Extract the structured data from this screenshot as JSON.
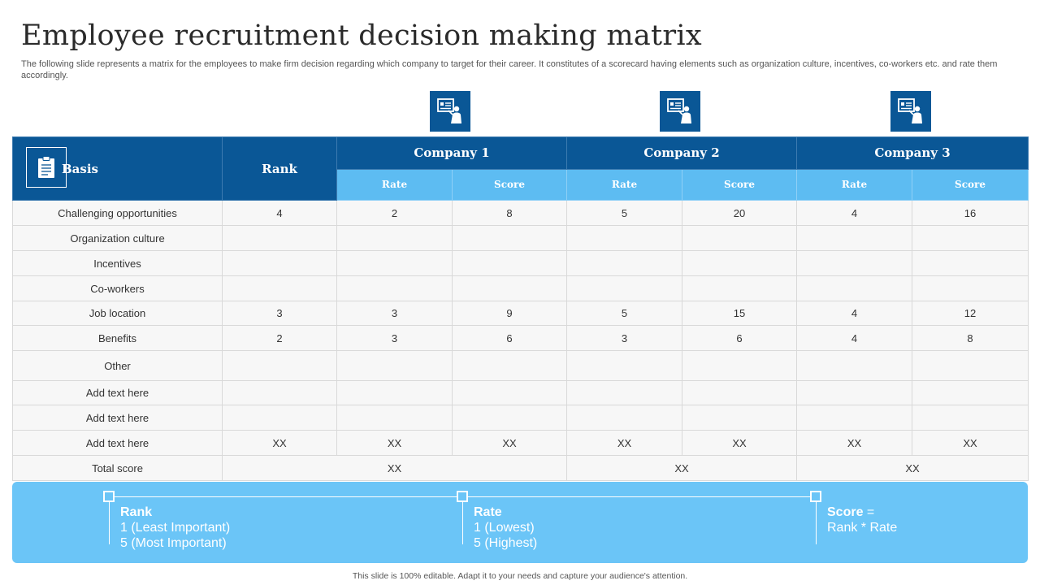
{
  "title": "Employee recruitment decision making matrix",
  "subtitle": "The following slide represents a matrix for the employees to make firm decision regarding which company to target for their career. It constitutes of a scorecard having elements such as organization culture, incentives, co-workers etc. and rate them accordingly.",
  "table": {
    "basis_header": "Basis",
    "rank_header": "Rank",
    "companies": [
      "Company 1",
      "Company 2",
      "Company 3"
    ],
    "sub_headers": {
      "rate": "Rate",
      "score": "Score"
    },
    "rows": [
      {
        "basis": "Challenging opportunities",
        "cells": [
          "4",
          "2",
          "8",
          "5",
          "20",
          "4",
          "16"
        ]
      },
      {
        "basis": "Organization culture",
        "cells": [
          "",
          "",
          "",
          "",
          "",
          "",
          ""
        ]
      },
      {
        "basis": "Incentives",
        "cells": [
          "",
          "",
          "",
          "",
          "",
          "",
          ""
        ]
      },
      {
        "basis": "Co-workers",
        "cells": [
          "",
          "",
          "",
          "",
          "",
          "",
          ""
        ]
      },
      {
        "basis": "Job location",
        "cells": [
          "3",
          "3",
          "9",
          "5",
          "15",
          "4",
          "12"
        ]
      },
      {
        "basis": "Benefits",
        "cells": [
          "2",
          "3",
          "6",
          "3",
          "6",
          "4",
          "8"
        ]
      },
      {
        "basis": "Other",
        "cells": [
          "",
          "",
          "",
          "",
          "",
          "",
          ""
        ]
      },
      {
        "basis": "Add text here",
        "cells": [
          "",
          "",
          "",
          "",
          "",
          "",
          ""
        ]
      },
      {
        "basis": "Add text here",
        "cells": [
          "",
          "",
          "",
          "",
          "",
          "",
          ""
        ]
      },
      {
        "basis": "Add text here",
        "cells": [
          "XX",
          "XX",
          "XX",
          "XX",
          "XX",
          "XX",
          "XX"
        ]
      }
    ],
    "total": {
      "label": "Total score",
      "values": [
        "XX",
        "XX",
        "XX"
      ]
    }
  },
  "legend": {
    "rank": {
      "heading": "Rank",
      "line1": "1 (Least Important)",
      "line2": "5 (Most Important)"
    },
    "rate": {
      "heading": "Rate",
      "line1": "1 (Lowest)",
      "line2": "5 (Highest)"
    },
    "score": {
      "heading": "Score",
      "eq": " =",
      "line1": "Rank * Rate"
    }
  },
  "footer": "This slide is 100% editable. Adapt it to your needs and capture your audience's attention.",
  "colors": {
    "dark_blue": "#0a5796",
    "light_blue": "#5dbcf2",
    "legend_blue": "#6bc5f7"
  },
  "icons": {
    "company": "presentation-board-icon",
    "basis": "clipboard-document-icon"
  }
}
